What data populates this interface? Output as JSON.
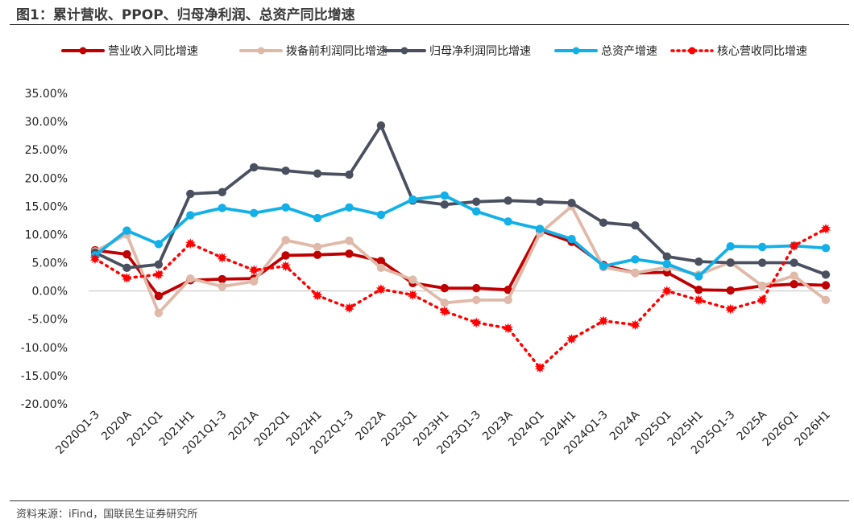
{
  "page": {
    "title": "图1：累计营收、PPOP、归母净利润、总资产同比增速",
    "source": "资料来源：iFind，国联民生证券研究所"
  },
  "chart_data": {
    "type": "line",
    "title": "图1：累计营收、PPOP、归母净利润、总资产同比增速",
    "xlabel": "",
    "ylabel": "",
    "ylim": [
      -20,
      35
    ],
    "y_unit": "%",
    "y_ticks": [
      35,
      30,
      25,
      20,
      15,
      10,
      5,
      0,
      -5,
      -10,
      -15,
      -20
    ],
    "y_tick_labels": [
      "35.00%",
      "30.00%",
      "25.00%",
      "20.00%",
      "15.00%",
      "10.00%",
      "5.00%",
      "0.00%",
      "-5.00%",
      "-10.00%",
      "-15.00%",
      "-20.00%"
    ],
    "grid": false,
    "legend_position": "top",
    "categories": [
      "2020Q1-3",
      "2020A",
      "2021Q1",
      "2021H1",
      "2021Q1-3",
      "2021A",
      "2022Q1",
      "2022H1",
      "2022Q1-3",
      "2022A",
      "2023Q1",
      "2023H1",
      "2023Q1-3",
      "2023A",
      "2024Q1",
      "2024H1",
      "2024Q1-3",
      "2024A",
      "2025Q1",
      "2025H1",
      "2025Q1-3",
      "2025A",
      "2026Q1",
      "2026H1"
    ],
    "series": [
      {
        "name": "营业收入同比增速",
        "color": "#c00000",
        "style": "solid",
        "values": [
          7.2,
          6.5,
          -0.9,
          1.9,
          2.1,
          2.2,
          6.3,
          6.4,
          6.6,
          5.3,
          1.4,
          0.5,
          0.5,
          0.2,
          10.7,
          8.7,
          4.6,
          3.2,
          3.3,
          0.2,
          0.1,
          0.9,
          1.2,
          1.0
        ]
      },
      {
        "name": "拨备前利润同比增速",
        "color": "#e0b9a8",
        "style": "solid",
        "values": [
          7.0,
          10.0,
          -3.9,
          2.2,
          0.8,
          1.7,
          9.0,
          7.8,
          8.9,
          4.1,
          2.0,
          -2.1,
          -1.6,
          -1.6,
          10.2,
          15.0,
          4.2,
          3.2,
          4.2,
          2.9,
          5.1,
          0.9,
          2.7,
          -1.6
        ]
      },
      {
        "name": "归母净利润同比增速",
        "color": "#4a5060",
        "style": "solid",
        "values": [
          6.8,
          4.1,
          4.7,
          17.2,
          17.5,
          21.9,
          21.3,
          20.8,
          20.6,
          29.3,
          16.0,
          15.3,
          15.8,
          16.0,
          15.8,
          15.6,
          12.1,
          11.6,
          6.1,
          5.2,
          5.0,
          5.0,
          5.0,
          2.9
        ]
      },
      {
        "name": "总资产增速",
        "color": "#12b0e8",
        "style": "solid",
        "values": [
          6.3,
          10.7,
          8.3,
          13.4,
          14.7,
          13.8,
          14.8,
          12.9,
          14.8,
          13.5,
          16.2,
          16.9,
          14.1,
          12.3,
          11.0,
          9.2,
          4.4,
          5.6,
          4.8,
          2.6,
          7.9,
          7.8,
          8.0,
          7.6
        ]
      },
      {
        "name": "核心营收同比增速",
        "color": "#ff0000",
        "style": "dotted",
        "values": [
          5.7,
          2.3,
          2.9,
          8.4,
          5.9,
          3.7,
          4.4,
          -0.8,
          -3.0,
          0.3,
          -0.7,
          -3.6,
          -5.6,
          -6.6,
          -13.6,
          -8.5,
          -5.3,
          -6.0,
          0.0,
          -1.6,
          -3.2,
          -1.6,
          8.0,
          11.0
        ]
      }
    ]
  }
}
